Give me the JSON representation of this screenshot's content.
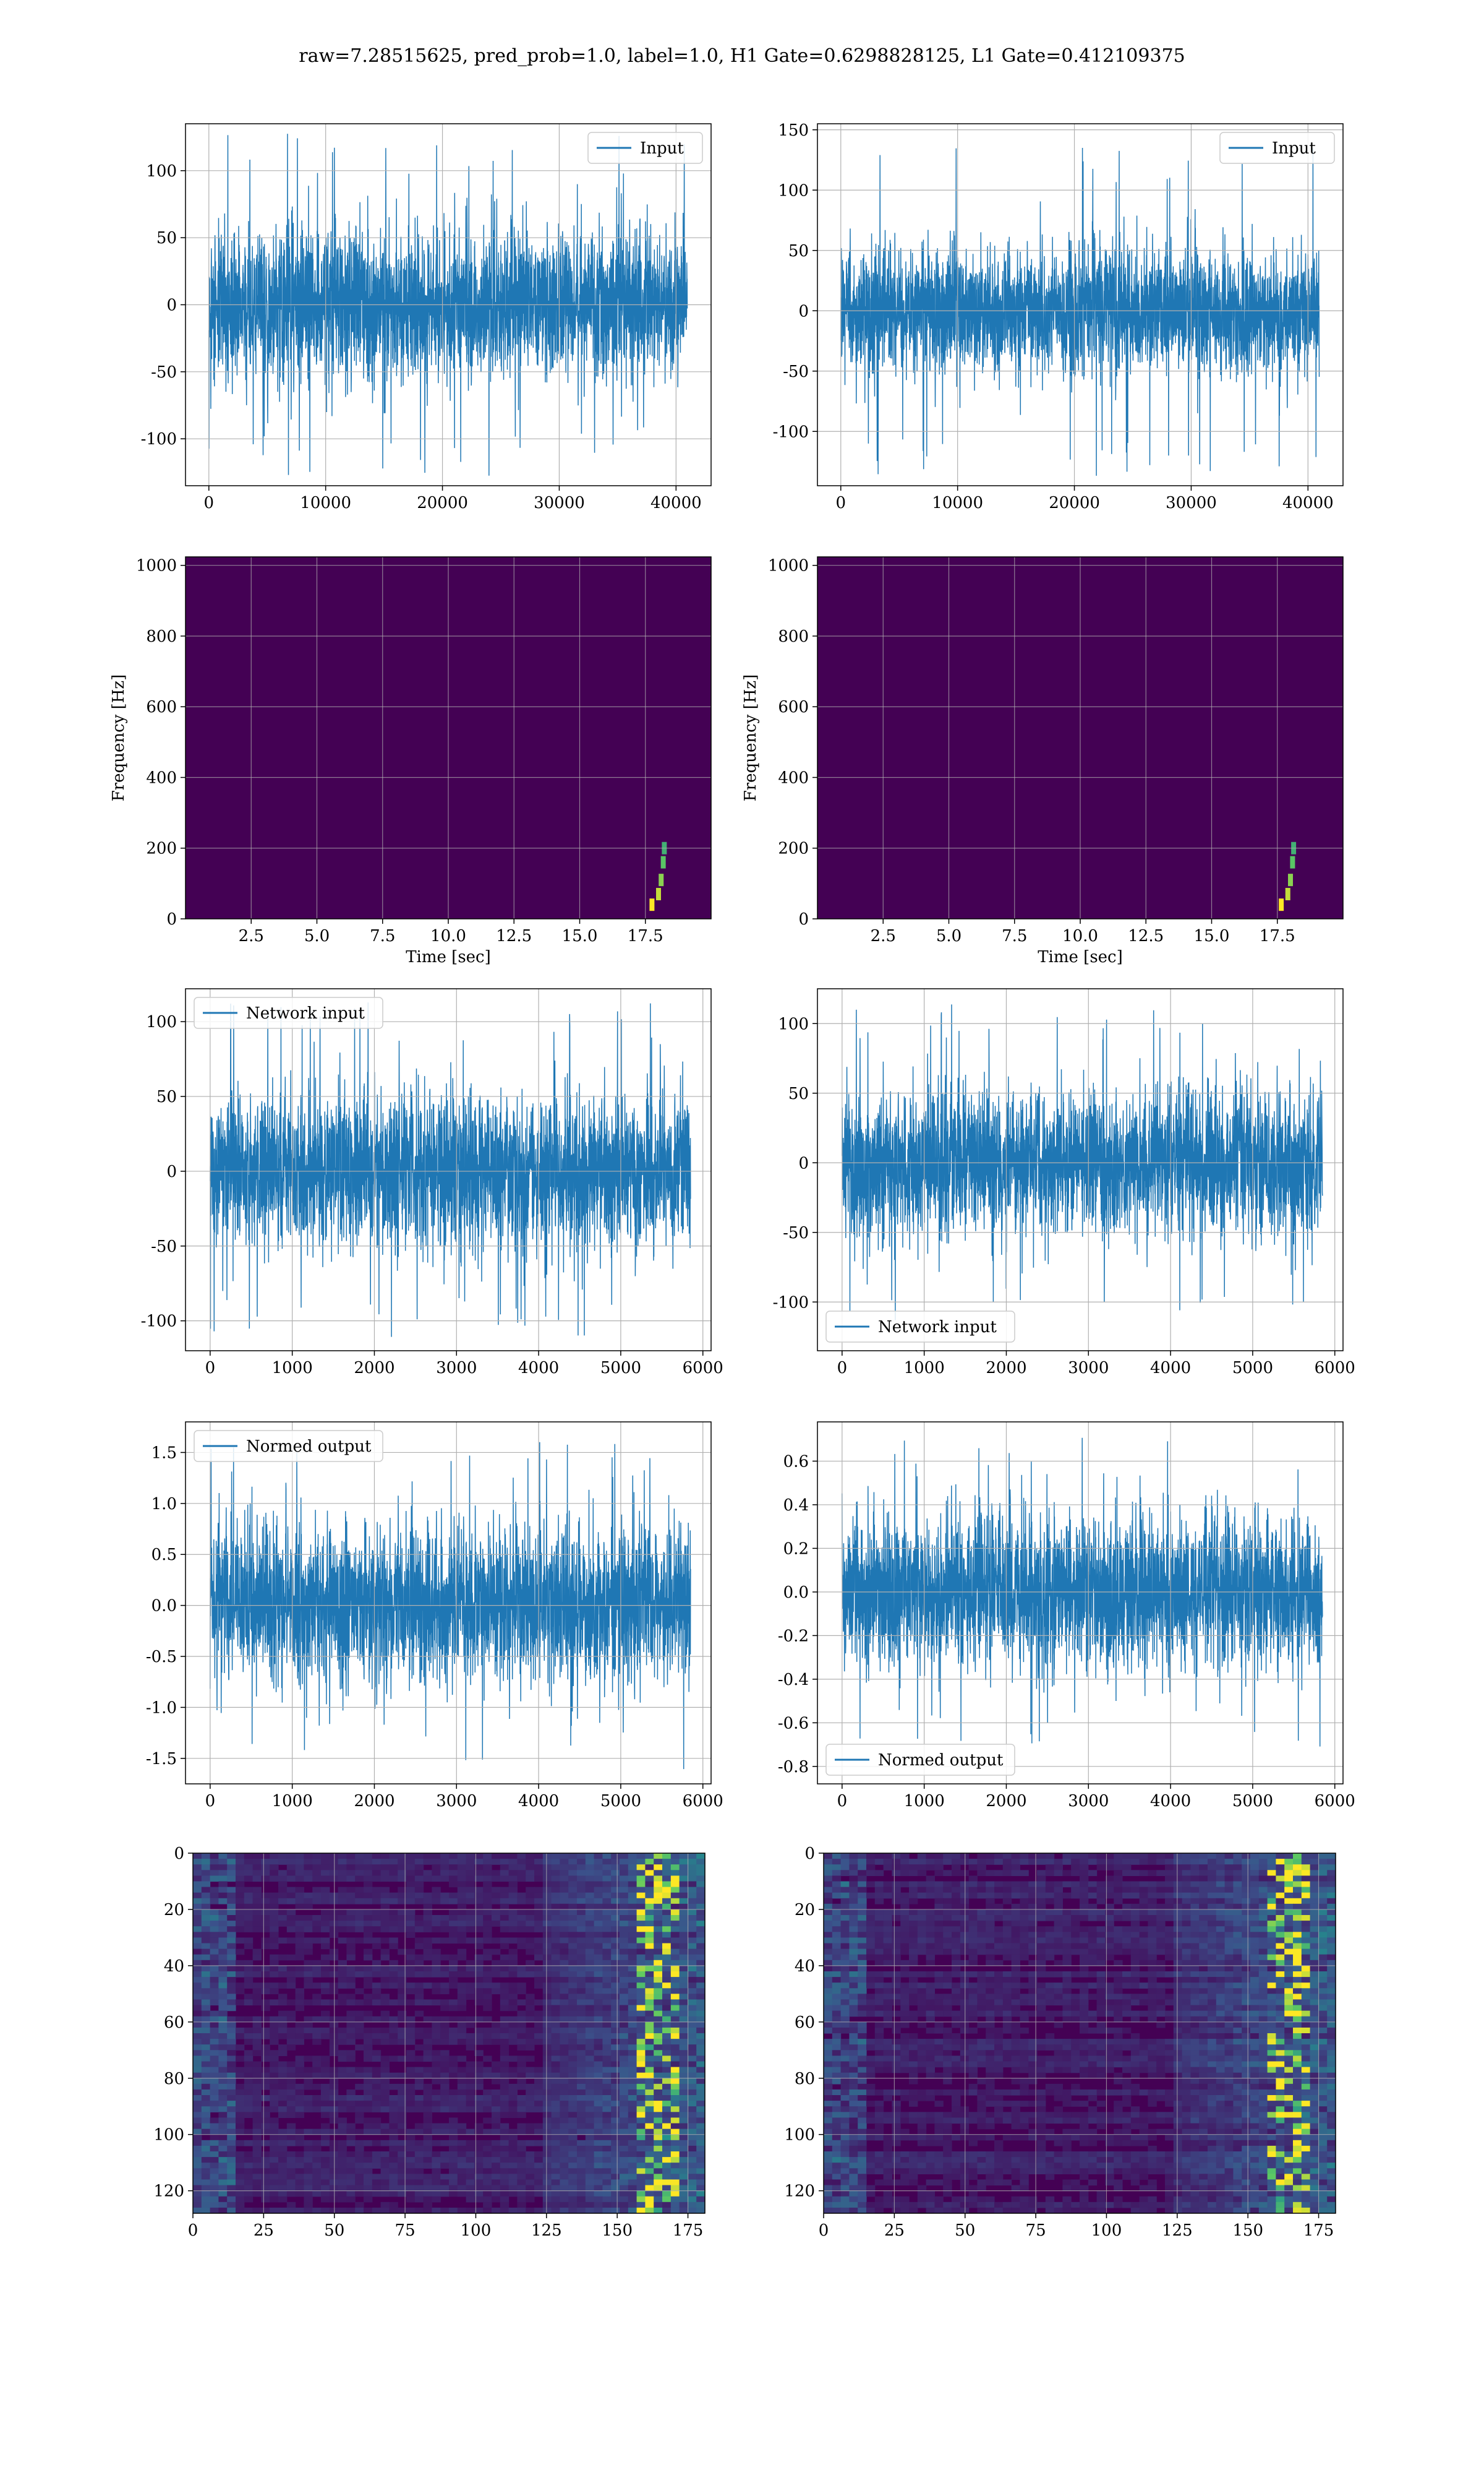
{
  "figure": {
    "suptitle": "raw=7.28515625, pred_prob=1.0, label=1.0, H1 Gate=0.6298828125, L1 Gate=0.412109375"
  },
  "colors": {
    "series": "#1f77b4",
    "grid": "#b0b0b0",
    "spine": "#000000",
    "viridis_dark": "#440154",
    "viridis_mid": "#31688e",
    "viridis_light": "#35b779",
    "viridis_bright": "#fde725"
  },
  "chart_data": [
    {
      "id": "h1_input",
      "type": "line",
      "legend": "Input",
      "legend_loc": "upper right",
      "xlim": [
        -2000,
        43000
      ],
      "ylim": [
        -135,
        135
      ],
      "xticks": [
        0,
        10000,
        20000,
        30000,
        40000
      ],
      "yticks": [
        -100,
        -50,
        0,
        50,
        100
      ],
      "x_range": [
        0,
        40960
      ],
      "amplitude": 28,
      "peak": 128,
      "grid": true
    },
    {
      "id": "l1_input",
      "type": "line",
      "legend": "Input",
      "legend_loc": "upper right",
      "xlim": [
        -2000,
        43000
      ],
      "ylim": [
        -145,
        155
      ],
      "xticks": [
        0,
        10000,
        20000,
        30000,
        40000
      ],
      "yticks": [
        -100,
        -50,
        0,
        50,
        100,
        150
      ],
      "x_range": [
        0,
        40960
      ],
      "amplitude": 26,
      "peak": 140,
      "grid": true
    },
    {
      "id": "h1_spectrogram",
      "type": "heatmap",
      "xlabel": "Time [sec]",
      "ylabel": "Frequency [Hz]",
      "xlim": [
        0,
        20
      ],
      "ylim": [
        0,
        1024
      ],
      "xticks": [
        2.5,
        5.0,
        7.5,
        10.0,
        12.5,
        15.0,
        17.5
      ],
      "yticks": [
        0,
        200,
        400,
        600,
        800,
        1000
      ],
      "chirp_time": 18.1,
      "colormap": "viridis",
      "grid": true
    },
    {
      "id": "l1_spectrogram",
      "type": "heatmap",
      "xlabel": "Time [sec]",
      "ylabel": "Frequency [Hz]",
      "xlim": [
        0,
        20
      ],
      "ylim": [
        0,
        1024
      ],
      "xticks": [
        2.5,
        5.0,
        7.5,
        10.0,
        12.5,
        15.0,
        17.5
      ],
      "yticks": [
        0,
        200,
        400,
        600,
        800,
        1000
      ],
      "chirp_time": 18.0,
      "colormap": "viridis",
      "grid": true
    },
    {
      "id": "h1_network_input",
      "type": "line",
      "legend": "Network input",
      "legend_loc": "upper left",
      "xlim": [
        -300,
        6100
      ],
      "ylim": [
        -120,
        122
      ],
      "xticks": [
        0,
        1000,
        2000,
        3000,
        4000,
        5000,
        6000
      ],
      "yticks": [
        -100,
        -50,
        0,
        50,
        100
      ],
      "x_range": [
        0,
        5850
      ],
      "amplitude": 26,
      "peak": 113,
      "grid": true
    },
    {
      "id": "l1_network_input",
      "type": "line",
      "legend": "Network input",
      "legend_loc": "lower left",
      "xlim": [
        -300,
        6100
      ],
      "ylim": [
        -135,
        125
      ],
      "xticks": [
        0,
        1000,
        2000,
        3000,
        4000,
        5000,
        6000
      ],
      "yticks": [
        -100,
        -50,
        0,
        50,
        100
      ],
      "x_range": [
        0,
        5850
      ],
      "amplitude": 26,
      "peak": 115,
      "grid": true
    },
    {
      "id": "h1_normed_output",
      "type": "line",
      "legend": "Normed output",
      "legend_loc": "upper left",
      "xlim": [
        -300,
        6100
      ],
      "ylim": [
        -1.75,
        1.8
      ],
      "xticks": [
        0,
        1000,
        2000,
        3000,
        4000,
        5000,
        6000
      ],
      "yticks": [
        -1.5,
        -1.0,
        -0.5,
        0.0,
        0.5,
        1.0,
        1.5
      ],
      "x_range": [
        0,
        5850
      ],
      "amplitude": 0.38,
      "peak": 1.65,
      "grid": true
    },
    {
      "id": "l1_normed_output",
      "type": "line",
      "legend": "Normed output",
      "legend_loc": "lower left",
      "xlim": [
        -300,
        6100
      ],
      "ylim": [
        -0.88,
        0.78
      ],
      "xticks": [
        0,
        1000,
        2000,
        3000,
        4000,
        5000,
        6000
      ],
      "yticks": [
        -0.8,
        -0.6,
        -0.4,
        -0.2,
        0.0,
        0.2,
        0.4,
        0.6
      ],
      "x_range": [
        0,
        5850
      ],
      "amplitude": 0.17,
      "peak": 0.71,
      "grid": true
    },
    {
      "id": "h1_feature_map",
      "type": "heatmap",
      "xlim": [
        0,
        181
      ],
      "ylim": [
        128,
        0
      ],
      "xticks": [
        0,
        25,
        50,
        75,
        100,
        125,
        150,
        175
      ],
      "yticks": [
        0,
        20,
        40,
        60,
        80,
        100,
        120
      ],
      "colormap": "viridis",
      "grid": true
    },
    {
      "id": "l1_feature_map",
      "type": "heatmap",
      "xlim": [
        0,
        181
      ],
      "ylim": [
        128,
        0
      ],
      "xticks": [
        0,
        25,
        50,
        75,
        100,
        125,
        150,
        175
      ],
      "yticks": [
        0,
        20,
        40,
        60,
        80,
        100,
        120
      ],
      "colormap": "viridis",
      "grid": true
    }
  ]
}
